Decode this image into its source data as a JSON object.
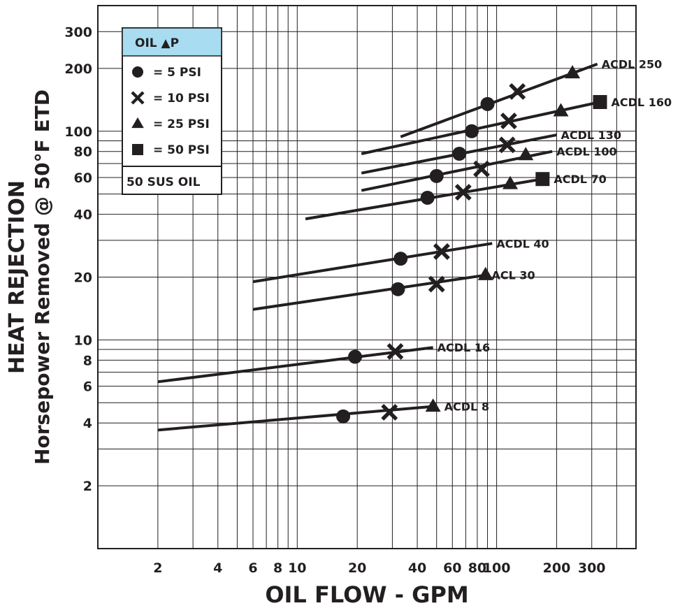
{
  "chart_data": {
    "type": "line",
    "title": "",
    "ylabel_line1": "HEAT REJECTION",
    "ylabel_line2": "Horsepower Removed @ 50°F ETD",
    "xlabel": "OIL FLOW - GPM",
    "x_scale": "log",
    "y_scale": "log",
    "xlim": [
      1,
      500
    ],
    "ylim": [
      1,
      400
    ],
    "grid": true,
    "x_ticks": [
      {
        "value": 2,
        "label": "2"
      },
      {
        "value": 4,
        "label": "4"
      },
      {
        "value": 6,
        "label": "6"
      },
      {
        "value": 8,
        "label": "8"
      },
      {
        "value": 10,
        "label": "10"
      },
      {
        "value": 20,
        "label": "20"
      },
      {
        "value": 40,
        "label": "40"
      },
      {
        "value": 60,
        "label": "60"
      },
      {
        "value": 80,
        "label": "80"
      },
      {
        "value": 100,
        "label": "100"
      },
      {
        "value": 200,
        "label": "200"
      },
      {
        "value": 300,
        "label": "300"
      }
    ],
    "y_ticks": [
      {
        "value": 2,
        "label": "2"
      },
      {
        "value": 4,
        "label": "4"
      },
      {
        "value": 6,
        "label": "6"
      },
      {
        "value": 8,
        "label": "8"
      },
      {
        "value": 10,
        "label": "10"
      },
      {
        "value": 20,
        "label": "20"
      },
      {
        "value": 40,
        "label": "40"
      },
      {
        "value": 60,
        "label": "60"
      },
      {
        "value": 80,
        "label": "80"
      },
      {
        "value": 100,
        "label": "100"
      },
      {
        "value": 200,
        "label": "200"
      },
      {
        "value": 300,
        "label": "300"
      }
    ],
    "legend": {
      "placement": "top-left",
      "header": "OIL ▲P",
      "items": [
        {
          "marker": "circle",
          "label": "= 5 PSI"
        },
        {
          "marker": "x",
          "label": "= 10 PSI"
        },
        {
          "marker": "triangle",
          "label": "= 25 PSI"
        },
        {
          "marker": "square",
          "label": "= 50 PSI"
        }
      ],
      "footer": "50 SUS OIL",
      "header_color": "#a8dcf0"
    },
    "series": [
      {
        "name": "ACDL 250",
        "line": [
          [
            33,
            94
          ],
          [
            320,
            210
          ]
        ],
        "markers": [
          {
            "x": 90,
            "y": 135,
            "m": "circle"
          },
          {
            "x": 127,
            "y": 155,
            "m": "x"
          },
          {
            "x": 240,
            "y": 190,
            "m": "triangle"
          }
        ]
      },
      {
        "name": "ACDL 160",
        "line": [
          [
            21,
            78
          ],
          [
            330,
            138
          ]
        ],
        "markers": [
          {
            "x": 75,
            "y": 100,
            "m": "circle"
          },
          {
            "x": 115,
            "y": 112,
            "m": "x"
          },
          {
            "x": 210,
            "y": 125,
            "m": "triangle"
          },
          {
            "x": 330,
            "y": 138,
            "m": "square"
          }
        ]
      },
      {
        "name": "ACDL 130",
        "line": [
          [
            21,
            63
          ],
          [
            200,
            96
          ]
        ],
        "markers": [
          {
            "x": 65,
            "y": 78,
            "m": "circle"
          },
          {
            "x": 113,
            "y": 86,
            "m": "x"
          }
        ]
      },
      {
        "name": "ACDL 100",
        "line": [
          [
            21,
            52
          ],
          [
            190,
            80
          ]
        ],
        "markers": [
          {
            "x": 50,
            "y": 61,
            "m": "circle"
          },
          {
            "x": 84,
            "y": 66,
            "m": "x"
          },
          {
            "x": 140,
            "y": 77,
            "m": "triangle"
          }
        ]
      },
      {
        "name": "ACDL 70",
        "line": [
          [
            11,
            38
          ],
          [
            170,
            59
          ]
        ],
        "markers": [
          {
            "x": 45,
            "y": 48,
            "m": "circle"
          },
          {
            "x": 68,
            "y": 51,
            "m": "x"
          },
          {
            "x": 117,
            "y": 56,
            "m": "triangle"
          },
          {
            "x": 170,
            "y": 59,
            "m": "square"
          }
        ]
      },
      {
        "name": "ACDL 40",
        "line": [
          [
            6,
            19
          ],
          [
            95,
            29
          ]
        ],
        "markers": [
          {
            "x": 33,
            "y": 24.5,
            "m": "circle"
          },
          {
            "x": 53,
            "y": 26.5,
            "m": "x"
          }
        ]
      },
      {
        "name": "ACL 30",
        "line": [
          [
            6,
            14
          ],
          [
            90,
            20.5
          ]
        ],
        "markers": [
          {
            "x": 32,
            "y": 17.5,
            "m": "circle"
          },
          {
            "x": 50,
            "y": 18.5,
            "m": "x"
          },
          {
            "x": 88,
            "y": 20.5,
            "m": "triangle"
          }
        ]
      },
      {
        "name": "ACDL 16",
        "line": [
          [
            2,
            6.3
          ],
          [
            48,
            9.2
          ]
        ],
        "markers": [
          {
            "x": 19.5,
            "y": 8.3,
            "m": "circle"
          },
          {
            "x": 31,
            "y": 8.8,
            "m": "x"
          }
        ]
      },
      {
        "name": "ACDL 8",
        "line": [
          [
            2,
            3.7
          ],
          [
            48,
            4.8
          ]
        ],
        "markers": [
          {
            "x": 17,
            "y": 4.3,
            "m": "circle"
          },
          {
            "x": 29,
            "y": 4.5,
            "m": "x"
          },
          {
            "x": 48,
            "y": 4.8,
            "m": "triangle"
          }
        ]
      }
    ]
  }
}
